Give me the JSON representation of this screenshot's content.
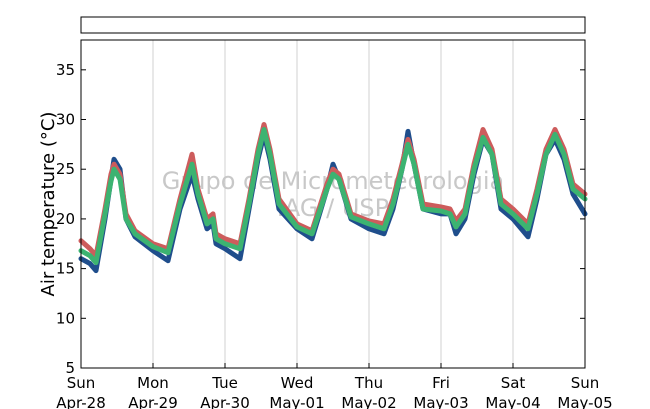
{
  "chart_data": {
    "type": "line",
    "title": "",
    "ylabel": "Air temperature (°C)",
    "xlabel": "",
    "ylim": [
      5,
      38
    ],
    "yticks": [
      5,
      10,
      15,
      20,
      25,
      30,
      35
    ],
    "xlim": [
      "2013-04-28 00:00",
      "2013-05-05 00:00"
    ],
    "xticks": [
      {
        "date": "2013-04-28",
        "day": "Sun",
        "label": "Apr-28"
      },
      {
        "date": "2013-04-29",
        "day": "Mon",
        "label": "Apr-29"
      },
      {
        "date": "2013-04-30",
        "day": "Tue",
        "label": "Apr-30"
      },
      {
        "date": "2013-05-01",
        "day": "Wed",
        "label": "May-01"
      },
      {
        "date": "2013-05-02",
        "day": "Thu",
        "label": "May-02"
      },
      {
        "date": "2013-05-03",
        "day": "Fri",
        "label": "May-03"
      },
      {
        "date": "2013-05-04",
        "day": "Sat",
        "label": "May-04"
      },
      {
        "date": "2013-05-05",
        "day": "Sun",
        "label": "May-05"
      }
    ],
    "grid": "vertical",
    "watermark": [
      "Grupo de Micrometeorologia",
      "IAG / USP"
    ],
    "series": [
      {
        "color": "#1f4e8c",
        "points": [
          [
            "2013-04-28 00:00",
            16.0
          ],
          [
            "2013-04-28 03:00",
            15.5
          ],
          [
            "2013-04-28 05:00",
            14.8
          ],
          [
            "2013-04-28 08:00",
            20.0
          ],
          [
            "2013-04-28 10:00",
            24.0
          ],
          [
            "2013-04-28 11:00",
            26.0
          ],
          [
            "2013-04-28 13:00",
            25.0
          ],
          [
            "2013-04-28 15:00",
            20.0
          ],
          [
            "2013-04-28 18:00",
            18.2
          ],
          [
            "2013-04-29 00:00",
            16.8
          ],
          [
            "2013-04-29 05:00",
            15.8
          ],
          [
            "2013-04-29 09:00",
            21.0
          ],
          [
            "2013-04-29 13:00",
            24.5
          ],
          [
            "2013-04-29 15:00",
            22.0
          ],
          [
            "2013-04-29 17:00",
            20.0
          ],
          [
            "2013-04-29 18:00",
            19.0
          ],
          [
            "2013-04-29 20:00",
            19.5
          ],
          [
            "2013-04-29 21:00",
            17.5
          ],
          [
            "2013-04-30 00:00",
            17.0
          ],
          [
            "2013-04-30 05:00",
            16.0
          ],
          [
            "2013-04-30 08:00",
            21.0
          ],
          [
            "2013-04-30 11:00",
            26.0
          ],
          [
            "2013-04-30 13:00",
            28.5
          ],
          [
            "2013-04-30 15:00",
            26.0
          ],
          [
            "2013-04-30 18:00",
            21.0
          ],
          [
            "2013-05-01 00:00",
            19.0
          ],
          [
            "2013-05-01 05:00",
            18.0
          ],
          [
            "2013-05-01 10:00",
            23.0
          ],
          [
            "2013-05-01 12:00",
            25.5
          ],
          [
            "2013-05-01 14:00",
            24.0
          ],
          [
            "2013-05-01 18:00",
            20.0
          ],
          [
            "2013-05-02 00:00",
            19.0
          ],
          [
            "2013-05-02 05:00",
            18.5
          ],
          [
            "2013-05-02 08:00",
            21.0
          ],
          [
            "2013-05-02 11:00",
            25.0
          ],
          [
            "2013-05-02 13:00",
            28.8
          ],
          [
            "2013-05-02 15:00",
            25.5
          ],
          [
            "2013-05-02 18:00",
            21.0
          ],
          [
            "2013-05-03 00:00",
            20.5
          ],
          [
            "2013-05-03 03:00",
            20.5
          ],
          [
            "2013-05-03 05:00",
            18.5
          ],
          [
            "2013-05-03 08:00",
            20.0
          ],
          [
            "2013-05-03 11:00",
            24.5
          ],
          [
            "2013-05-03 14:00",
            28.0
          ],
          [
            "2013-05-03 17:00",
            26.5
          ],
          [
            "2013-05-03 20:00",
            21.0
          ],
          [
            "2013-05-04 00:00",
            20.0
          ],
          [
            "2013-05-04 05:00",
            18.2
          ],
          [
            "2013-05-04 08:00",
            22.0
          ],
          [
            "2013-05-04 11:00",
            26.5
          ],
          [
            "2013-05-04 14:00",
            28.0
          ],
          [
            "2013-05-04 17:00",
            26.0
          ],
          [
            "2013-05-04 20:00",
            22.5
          ],
          [
            "2013-05-05 00:00",
            20.5
          ]
        ]
      },
      {
        "color": "#cd5c5c",
        "points": [
          [
            "2013-04-28 00:00",
            17.8
          ],
          [
            "2013-04-28 03:00",
            17.0
          ],
          [
            "2013-04-28 05:00",
            16.3
          ],
          [
            "2013-04-28 08:00",
            21.0
          ],
          [
            "2013-04-28 10:00",
            24.5
          ],
          [
            "2013-04-28 11:00",
            25.5
          ],
          [
            "2013-04-28 13:00",
            24.5
          ],
          [
            "2013-04-28 15:00",
            20.5
          ],
          [
            "2013-04-28 18:00",
            18.8
          ],
          [
            "2013-04-29 00:00",
            17.5
          ],
          [
            "2013-04-29 05:00",
            17.0
          ],
          [
            "2013-04-29 09:00",
            22.0
          ],
          [
            "2013-04-29 13:00",
            26.5
          ],
          [
            "2013-04-29 15:00",
            23.0
          ],
          [
            "2013-04-29 17:00",
            21.0
          ],
          [
            "2013-04-29 18:00",
            20.0
          ],
          [
            "2013-04-29 20:00",
            20.5
          ],
          [
            "2013-04-29 21:00",
            18.5
          ],
          [
            "2013-04-30 00:00",
            18.0
          ],
          [
            "2013-04-30 05:00",
            17.5
          ],
          [
            "2013-04-30 08:00",
            22.0
          ],
          [
            "2013-04-30 11:00",
            27.0
          ],
          [
            "2013-04-30 13:00",
            29.5
          ],
          [
            "2013-04-30 15:00",
            27.0
          ],
          [
            "2013-04-30 18:00",
            22.0
          ],
          [
            "2013-05-01 00:00",
            19.5
          ],
          [
            "2013-05-01 05:00",
            18.8
          ],
          [
            "2013-05-01 10:00",
            23.5
          ],
          [
            "2013-05-01 12:00",
            25.0
          ],
          [
            "2013-05-01 14:00",
            24.5
          ],
          [
            "2013-05-01 18:00",
            20.5
          ],
          [
            "2013-05-02 00:00",
            19.8
          ],
          [
            "2013-05-02 05:00",
            19.5
          ],
          [
            "2013-05-02 08:00",
            22.0
          ],
          [
            "2013-05-02 11:00",
            25.5
          ],
          [
            "2013-05-02 13:00",
            28.0
          ],
          [
            "2013-05-02 15:00",
            26.0
          ],
          [
            "2013-05-02 18:00",
            21.5
          ],
          [
            "2013-05-03 00:00",
            21.2
          ],
          [
            "2013-05-03 03:00",
            21.0
          ],
          [
            "2013-05-03 05:00",
            19.8
          ],
          [
            "2013-05-03 08:00",
            21.0
          ],
          [
            "2013-05-03 11:00",
            25.5
          ],
          [
            "2013-05-03 14:00",
            29.0
          ],
          [
            "2013-05-03 17:00",
            27.0
          ],
          [
            "2013-05-03 20:00",
            22.0
          ],
          [
            "2013-05-04 00:00",
            21.0
          ],
          [
            "2013-05-04 05:00",
            19.5
          ],
          [
            "2013-05-04 08:00",
            23.0
          ],
          [
            "2013-05-04 11:00",
            27.0
          ],
          [
            "2013-05-04 14:00",
            29.0
          ],
          [
            "2013-05-04 17:00",
            27.0
          ],
          [
            "2013-05-04 20:00",
            23.5
          ],
          [
            "2013-05-05 00:00",
            22.5
          ]
        ]
      },
      {
        "color": "#3cb371",
        "points": [
          [
            "2013-04-28 00:00",
            16.8
          ],
          [
            "2013-04-28 03:00",
            16.3
          ],
          [
            "2013-04-28 05:00",
            15.6
          ],
          [
            "2013-04-28 08:00",
            20.5
          ],
          [
            "2013-04-28 10:00",
            23.8
          ],
          [
            "2013-04-28 11:00",
            25.0
          ],
          [
            "2013-04-28 13:00",
            24.0
          ],
          [
            "2013-04-28 15:00",
            20.0
          ],
          [
            "2013-04-28 18:00",
            18.5
          ],
          [
            "2013-04-29 00:00",
            17.2
          ],
          [
            "2013-04-29 05:00",
            16.6
          ],
          [
            "2013-04-29 09:00",
            21.5
          ],
          [
            "2013-04-29 13:00",
            25.5
          ],
          [
            "2013-04-29 15:00",
            22.5
          ],
          [
            "2013-04-29 17:00",
            20.5
          ],
          [
            "2013-04-29 18:00",
            19.5
          ],
          [
            "2013-04-29 20:00",
            20.0
          ],
          [
            "2013-04-29 21:00",
            18.0
          ],
          [
            "2013-04-30 00:00",
            17.5
          ],
          [
            "2013-04-30 05:00",
            17.0
          ],
          [
            "2013-04-30 08:00",
            21.5
          ],
          [
            "2013-04-30 11:00",
            26.5
          ],
          [
            "2013-04-30 13:00",
            29.0
          ],
          [
            "2013-04-30 15:00",
            26.5
          ],
          [
            "2013-04-30 18:00",
            21.5
          ],
          [
            "2013-05-01 00:00",
            19.2
          ],
          [
            "2013-05-01 05:00",
            18.5
          ],
          [
            "2013-05-01 10:00",
            23.0
          ],
          [
            "2013-05-01 12:00",
            24.5
          ],
          [
            "2013-05-01 14:00",
            24.0
          ],
          [
            "2013-05-01 18:00",
            20.2
          ],
          [
            "2013-05-02 00:00",
            19.5
          ],
          [
            "2013-05-02 05:00",
            19.0
          ],
          [
            "2013-05-02 08:00",
            21.5
          ],
          [
            "2013-05-02 11:00",
            25.0
          ],
          [
            "2013-05-02 13:00",
            27.5
          ],
          [
            "2013-05-02 15:00",
            25.5
          ],
          [
            "2013-05-02 18:00",
            21.0
          ],
          [
            "2013-05-03 00:00",
            20.8
          ],
          [
            "2013-05-03 03:00",
            20.5
          ],
          [
            "2013-05-03 05:00",
            19.2
          ],
          [
            "2013-05-03 08:00",
            20.5
          ],
          [
            "2013-05-03 11:00",
            25.0
          ],
          [
            "2013-05-03 14:00",
            28.2
          ],
          [
            "2013-05-03 17:00",
            26.5
          ],
          [
            "2013-05-03 20:00",
            21.5
          ],
          [
            "2013-05-04 00:00",
            20.5
          ],
          [
            "2013-05-04 05:00",
            19.0
          ],
          [
            "2013-05-04 08:00",
            22.5
          ],
          [
            "2013-05-04 11:00",
            26.5
          ],
          [
            "2013-05-04 14:00",
            28.5
          ],
          [
            "2013-05-04 17:00",
            26.5
          ],
          [
            "2013-05-04 20:00",
            23.0
          ],
          [
            "2013-05-05 00:00",
            22.0
          ]
        ]
      }
    ]
  }
}
